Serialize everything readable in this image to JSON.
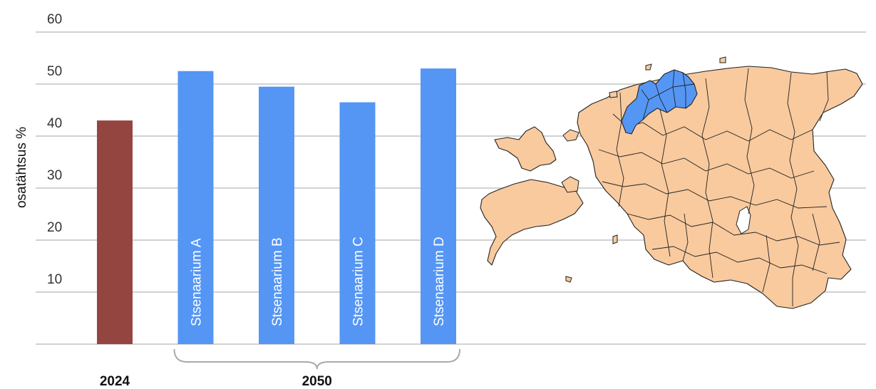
{
  "chart_data": {
    "type": "bar",
    "title": "",
    "xlabel": "",
    "ylabel": "osatähtsus %",
    "ylim": [
      0,
      60
    ],
    "yticks": [
      10,
      20,
      30,
      40,
      50,
      60
    ],
    "grid": true,
    "categories": [
      "2024",
      "Stsenaarium A",
      "Stsenaarium B",
      "Stsenaarium C",
      "Stsenaarium D"
    ],
    "values": [
      43,
      52.5,
      49.5,
      46.5,
      53
    ],
    "bar_colors": [
      "#954540",
      "#5596f5",
      "#5596f5",
      "#5596f5",
      "#5596f5"
    ],
    "groups": [
      {
        "label": "2024",
        "members": [
          "2024"
        ]
      },
      {
        "label": "2050",
        "members": [
          "Stsenaarium A",
          "Stsenaarium B",
          "Stsenaarium C",
          "Stsenaarium D"
        ]
      }
    ]
  },
  "map": {
    "land_color": "#f8ca9e",
    "highlight_color": "#5596f5",
    "border_color": "#222222"
  }
}
